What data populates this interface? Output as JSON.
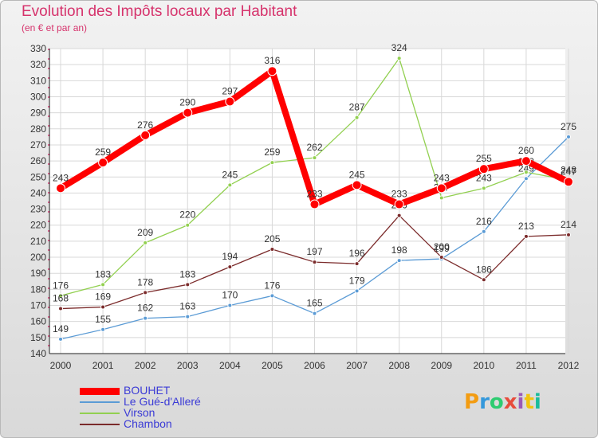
{
  "title": "Evolution des Impôts locaux par Habitant",
  "subtitle": "(en € et par an)",
  "logo": {
    "text": "Proxiti",
    "letters": [
      {
        "ch": "P",
        "color": "#f39c12"
      },
      {
        "ch": "r",
        "color": "#3498db"
      },
      {
        "ch": "o",
        "color": "#2ecc71"
      },
      {
        "ch": "x",
        "color": "#e74c3c"
      },
      {
        "ch": "i",
        "color": "#9b59b6"
      },
      {
        "ch": "t",
        "color": "#f1c40f"
      },
      {
        "ch": "i",
        "color": "#1abc9c"
      }
    ]
  },
  "chart_data": {
    "type": "line",
    "x": [
      2000,
      2001,
      2002,
      2003,
      2004,
      2005,
      2006,
      2007,
      2008,
      2009,
      2010,
      2011,
      2012
    ],
    "ylim": [
      140,
      330
    ],
    "yticks": [
      140,
      150,
      160,
      170,
      180,
      190,
      200,
      210,
      220,
      230,
      240,
      250,
      260,
      270,
      280,
      290,
      300,
      310,
      320,
      330
    ],
    "grid": true,
    "series": [
      {
        "name": "Le Gué-d'Alleré",
        "color": "#5b9bd5",
        "width": 1.3,
        "marker": 5,
        "values": [
          149,
          155,
          162,
          163,
          170,
          176,
          165,
          179,
          198,
          199,
          216,
          249,
          275
        ]
      },
      {
        "name": "Virson",
        "color": "#92d050",
        "width": 1.3,
        "marker": 5,
        "values": [
          176,
          183,
          209,
          220,
          245,
          259,
          262,
          287,
          324,
          237,
          243,
          253,
          248
        ]
      },
      {
        "name": "Chambon",
        "color": "#7b2b2b",
        "width": 1.3,
        "marker": 5,
        "values": [
          168,
          169,
          178,
          183,
          194,
          205,
          197,
          196,
          226,
          200,
          186,
          213,
          214
        ]
      },
      {
        "name": "BOUHET",
        "color": "#ff0000",
        "width": 8,
        "marker": 11,
        "values": [
          243,
          259,
          276,
          290,
          297,
          316,
          233,
          245,
          233,
          243,
          255,
          260,
          247
        ]
      }
    ],
    "legend_order": [
      "BOUHET",
      "Le Gué-d'Alleré",
      "Virson",
      "Chambon"
    ],
    "legend_position": "bottom-left"
  }
}
